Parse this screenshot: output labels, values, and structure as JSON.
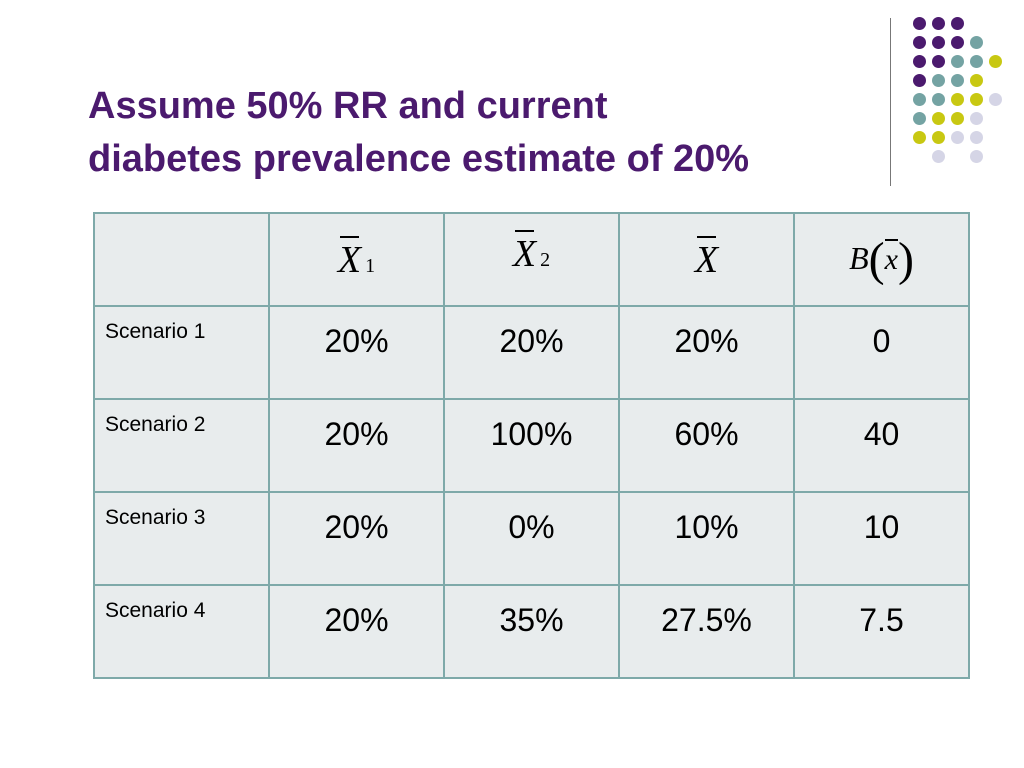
{
  "slide": {
    "title_line1": "Assume 50% RR and current",
    "title_line2": "diabetes prevalence estimate of 20%"
  },
  "decoration": {
    "dot_colors": {
      "purple": "#4b1a6e",
      "teal": "#74a3a3",
      "yellow": "#c8c812",
      "lavender": "#d5d5e6"
    }
  },
  "table": {
    "headers": {
      "x1_symbol": "X",
      "x1_subscript": "1",
      "x2_symbol": "X",
      "x2_subscript": "2",
      "xbar_symbol": "X",
      "bias_func": "B",
      "bias_arg": "x"
    },
    "rows": [
      {
        "label": "Scenario 1",
        "x1": "20%",
        "x2": "20%",
        "xbar": "20%",
        "bias": "0"
      },
      {
        "label": "Scenario 2",
        "x1": "20%",
        "x2": "100%",
        "xbar": "60%",
        "bias": "40"
      },
      {
        "label": "Scenario 3",
        "x1": "20%",
        "x2": "0%",
        "xbar": "10%",
        "bias": "10"
      },
      {
        "label": "Scenario 4",
        "x1": "20%",
        "x2": "35%",
        "xbar": "27.5%",
        "bias": "7.5"
      }
    ]
  }
}
